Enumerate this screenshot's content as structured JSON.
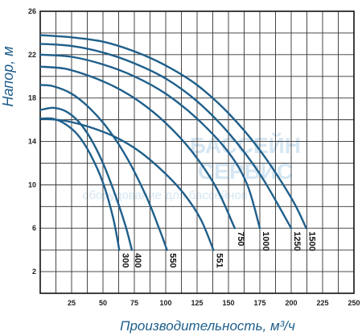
{
  "chart_data": {
    "type": "line",
    "xlabel": "Производительность, м³/ч",
    "ylabel": "Напор, м",
    "xlim": [
      0,
      250
    ],
    "ylim": [
      0,
      26
    ],
    "x_ticks": [
      25,
      50,
      75,
      100,
      125,
      150,
      175,
      200,
      225,
      250
    ],
    "y_ticks": [
      2,
      6,
      10,
      14,
      18,
      22,
      26
    ],
    "grid": true,
    "line_color": "#1f5f8b",
    "watermark": {
      "line1": "БАССЕЙН",
      "line2": "СЕРВИС",
      "line3": "оборудование для бассейнов"
    },
    "series": [
      {
        "name": "300",
        "x": [
          0,
          10,
          20,
          30,
          40,
          50,
          58,
          63
        ],
        "y": [
          16.1,
          16.1,
          15.6,
          14.6,
          12.8,
          10.2,
          7.0,
          4.0
        ]
      },
      {
        "name": "400",
        "x": [
          0,
          10,
          20,
          30,
          40,
          50,
          60,
          68,
          73
        ],
        "y": [
          16.9,
          17.1,
          16.8,
          15.9,
          14.3,
          12.0,
          9.0,
          6.2,
          4.0
        ]
      },
      {
        "name": "550",
        "x": [
          0,
          10,
          25,
          40,
          55,
          70,
          85,
          95,
          101
        ],
        "y": [
          19.2,
          19.1,
          18.4,
          17.0,
          15.0,
          12.3,
          8.8,
          5.9,
          4.0
        ]
      },
      {
        "name": "551",
        "x": [
          0,
          20,
          40,
          60,
          80,
          100,
          115,
          128,
          138
        ],
        "y": [
          16.1,
          15.9,
          15.3,
          14.4,
          13.0,
          11.0,
          9.1,
          6.8,
          4.0
        ]
      },
      {
        "name": "750",
        "x": [
          0,
          20,
          40,
          60,
          80,
          100,
          120,
          140,
          155
        ],
        "y": [
          20.9,
          20.7,
          20.0,
          19.0,
          17.6,
          15.7,
          13.2,
          9.8,
          6.0
        ]
      },
      {
        "name": "1000",
        "x": [
          0,
          25,
          50,
          75,
          100,
          125,
          150,
          165,
          175
        ],
        "y": [
          22.0,
          21.8,
          21.1,
          20.0,
          18.4,
          16.1,
          13.0,
          10.0,
          6.0
        ]
      },
      {
        "name": "1250",
        "x": [
          0,
          25,
          50,
          75,
          100,
          125,
          150,
          175,
          200
        ],
        "y": [
          23.0,
          22.8,
          22.2,
          21.2,
          19.8,
          17.7,
          14.8,
          11.0,
          6.0
        ]
      },
      {
        "name": "1500",
        "x": [
          0,
          25,
          50,
          75,
          100,
          125,
          150,
          175,
          200,
          212
        ],
        "y": [
          23.8,
          23.6,
          23.2,
          22.3,
          21.0,
          19.2,
          16.6,
          13.2,
          8.8,
          6.0
        ]
      }
    ]
  }
}
